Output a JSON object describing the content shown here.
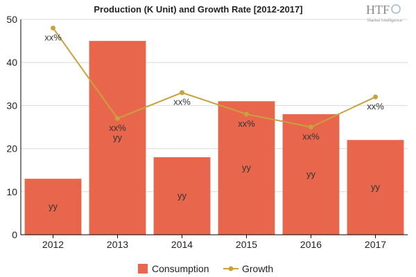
{
  "chart_data": {
    "type": "bar",
    "title": "Production (K Unit) and Growth Rate [2012-2017]",
    "categories": [
      "2012",
      "2013",
      "2014",
      "2015",
      "2016",
      "2017"
    ],
    "series": [
      {
        "name": "Consumption",
        "type": "bar",
        "axis": "left",
        "values": [
          13,
          45,
          18,
          31,
          28,
          22
        ],
        "data_labels": [
          "yy",
          "yy",
          "yy",
          "yy",
          "yy",
          "yy"
        ],
        "color": "#e8664c"
      },
      {
        "name": "Growth",
        "type": "line",
        "axis": "left",
        "values": [
          48,
          27,
          33,
          28,
          25,
          32
        ],
        "data_labels": [
          "xx%",
          "xx%",
          "xx%",
          "xx%",
          "xx%",
          "xx%"
        ],
        "color": "#c9a23c"
      }
    ],
    "y_ticks": [
      "0",
      "10",
      "20",
      "30",
      "40",
      "50"
    ],
    "ylim": [
      0,
      50
    ],
    "xlabel": "",
    "ylabel": "",
    "grid": "horizontal",
    "legend_position": "bottom"
  },
  "watermark": {
    "logo_text": "HTF",
    "logo_subtext": "Market Intelligence",
    "icon": "globe-icon"
  }
}
